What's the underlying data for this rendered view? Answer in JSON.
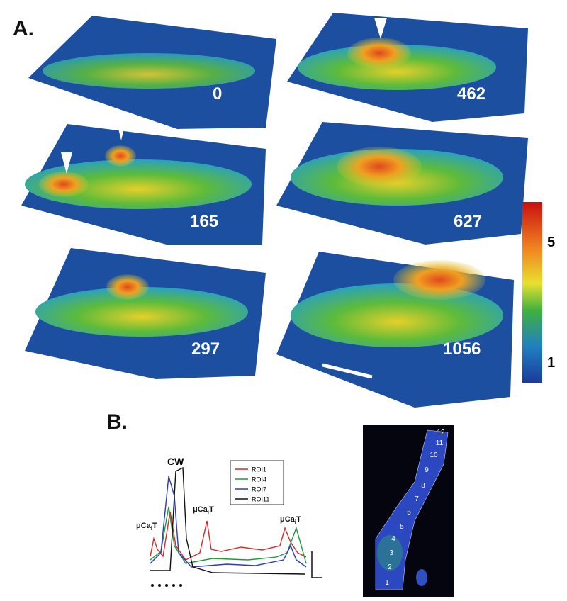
{
  "panel_a": {
    "label": "A.",
    "plates": [
      0,
      462,
      165,
      627,
      297,
      1056
    ],
    "colorbar_ticks": [
      5,
      1
    ]
  },
  "panel_b": {
    "label": "B.",
    "cw": "CW",
    "events": [
      {
        "main": "μCa",
        "sub": "i",
        "end": "T"
      },
      {
        "main": "μCa",
        "sub": "i",
        "end": "T"
      },
      {
        "main": "μCa",
        "sub": "i",
        "end": "T"
      }
    ],
    "legend": [
      {
        "name": "ROI1",
        "color": "#d42a2a"
      },
      {
        "name": "ROI4",
        "color": "#1e9a3a"
      },
      {
        "name": "ROI7",
        "color": "#2a3cc0"
      },
      {
        "name": "ROI11",
        "color": "#111111"
      }
    ],
    "roi_numbers": [
      "1",
      "2",
      "3",
      "4",
      "5",
      "6",
      "7",
      "8",
      "9",
      "10",
      "11",
      "12"
    ]
  }
}
